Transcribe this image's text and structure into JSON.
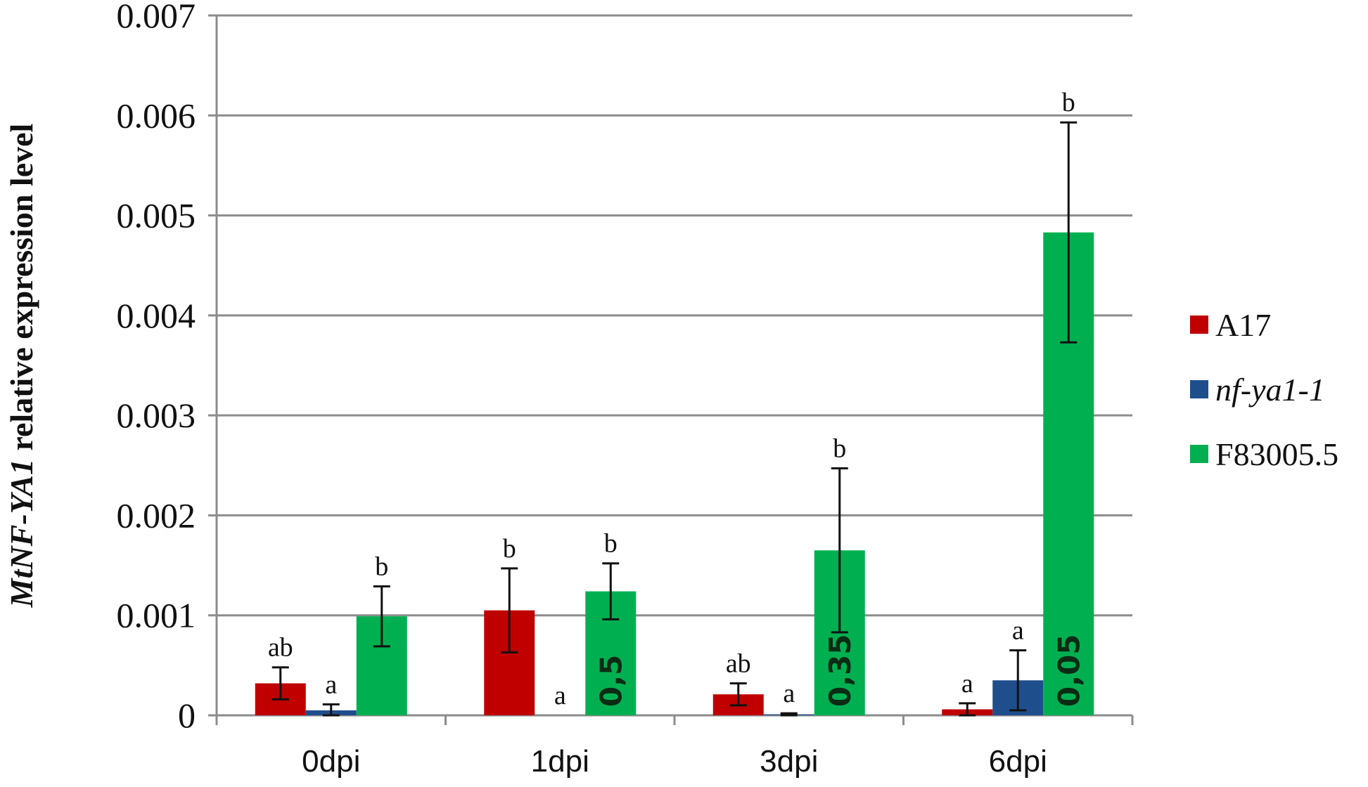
{
  "chart_data": {
    "type": "bar",
    "categories": [
      "0dpi",
      "1dpi",
      "3dpi",
      "6dpi"
    ],
    "ylabel_italic": "MtNF-YA1",
    "ylabel_rest": " relative expression level",
    "ylim": [
      0,
      0.007
    ],
    "yticks": [
      "0",
      "0.001",
      "0.002",
      "0.003",
      "0.004",
      "0.005",
      "0.006",
      "0.007"
    ],
    "ytick_values": [
      0,
      0.001,
      0.002,
      0.003,
      0.004,
      0.005,
      0.006,
      0.007
    ],
    "grid": true,
    "legend_position": "right",
    "series": [
      {
        "name": "A17",
        "italic": false,
        "color": "#c00000",
        "values": [
          0.00032,
          0.00105,
          0.00021,
          6e-05
        ],
        "errors": [
          0.00016,
          0.00042,
          0.00011,
          6e-05
        ],
        "letters": [
          "ab",
          "b",
          "ab",
          "a"
        ],
        "inbar": [
          "",
          "",
          "",
          ""
        ]
      },
      {
        "name": "nf-ya1-1",
        "italic": true,
        "color": "#1f4e8c",
        "values": [
          5e-05,
          0.0,
          1e-05,
          0.00035
        ],
        "errors": [
          6e-05,
          0.0,
          1e-05,
          0.0003
        ],
        "letters": [
          "a",
          "a",
          "a",
          "a"
        ],
        "inbar": [
          "",
          "",
          "",
          ""
        ]
      },
      {
        "name": "F83005.5",
        "italic": false,
        "color": "#00b050",
        "values": [
          0.00099,
          0.00124,
          0.00165,
          0.00483
        ],
        "errors": [
          0.0003,
          0.00028,
          0.00082,
          0.0011
        ],
        "letters": [
          "b",
          "b",
          "b",
          "b"
        ],
        "inbar": [
          "",
          "0,5",
          "0,35",
          "0,05"
        ]
      }
    ]
  }
}
